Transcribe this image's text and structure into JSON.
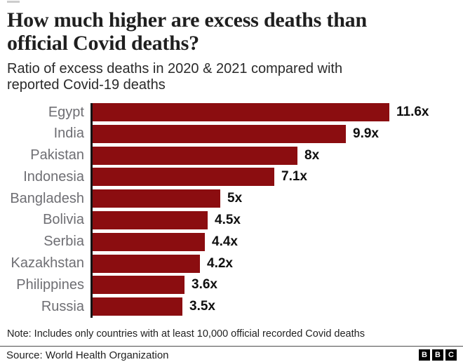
{
  "title_lines": [
    "How much higher are excess deaths than",
    "official Covid deaths?"
  ],
  "subtitle_lines": [
    "Ratio of excess deaths in 2020 & 2021 compared with",
    "reported Covid-19 deaths"
  ],
  "note": "Note: Includes only countries with at least 10,000 official recorded Covid deaths",
  "source": "Source: World Health Organization",
  "logo": {
    "letters": [
      "B",
      "B",
      "C"
    ]
  },
  "colors": {
    "bar": "#8b0d10",
    "category_label": "#6e6e73",
    "axis": "#141414",
    "title": "#1f1f1f",
    "value_label": "#0f0f0f"
  },
  "chart_data": {
    "type": "bar",
    "orientation": "horizontal",
    "title": "How much higher are excess deaths than official Covid deaths?",
    "subtitle": "Ratio of excess deaths in 2020 & 2021 compared with reported Covid-19 deaths",
    "categories": [
      "Egypt",
      "India",
      "Pakistan",
      "Indonesia",
      "Bangladesh",
      "Bolivia",
      "Serbia",
      "Kazakhstan",
      "Philippines",
      "Russia"
    ],
    "values": [
      11.6,
      9.9,
      8,
      7.1,
      5,
      4.5,
      4.4,
      4.2,
      3.6,
      3.5
    ],
    "value_labels": [
      "11.6x",
      "9.9x",
      "8x",
      "7.1x",
      "5x",
      "4.5x",
      "4.4x",
      "4.2x",
      "3.6x",
      "3.5x"
    ],
    "xlim": [
      0,
      11.6
    ],
    "grid": false,
    "legend": false,
    "unit_suffix": "x"
  }
}
